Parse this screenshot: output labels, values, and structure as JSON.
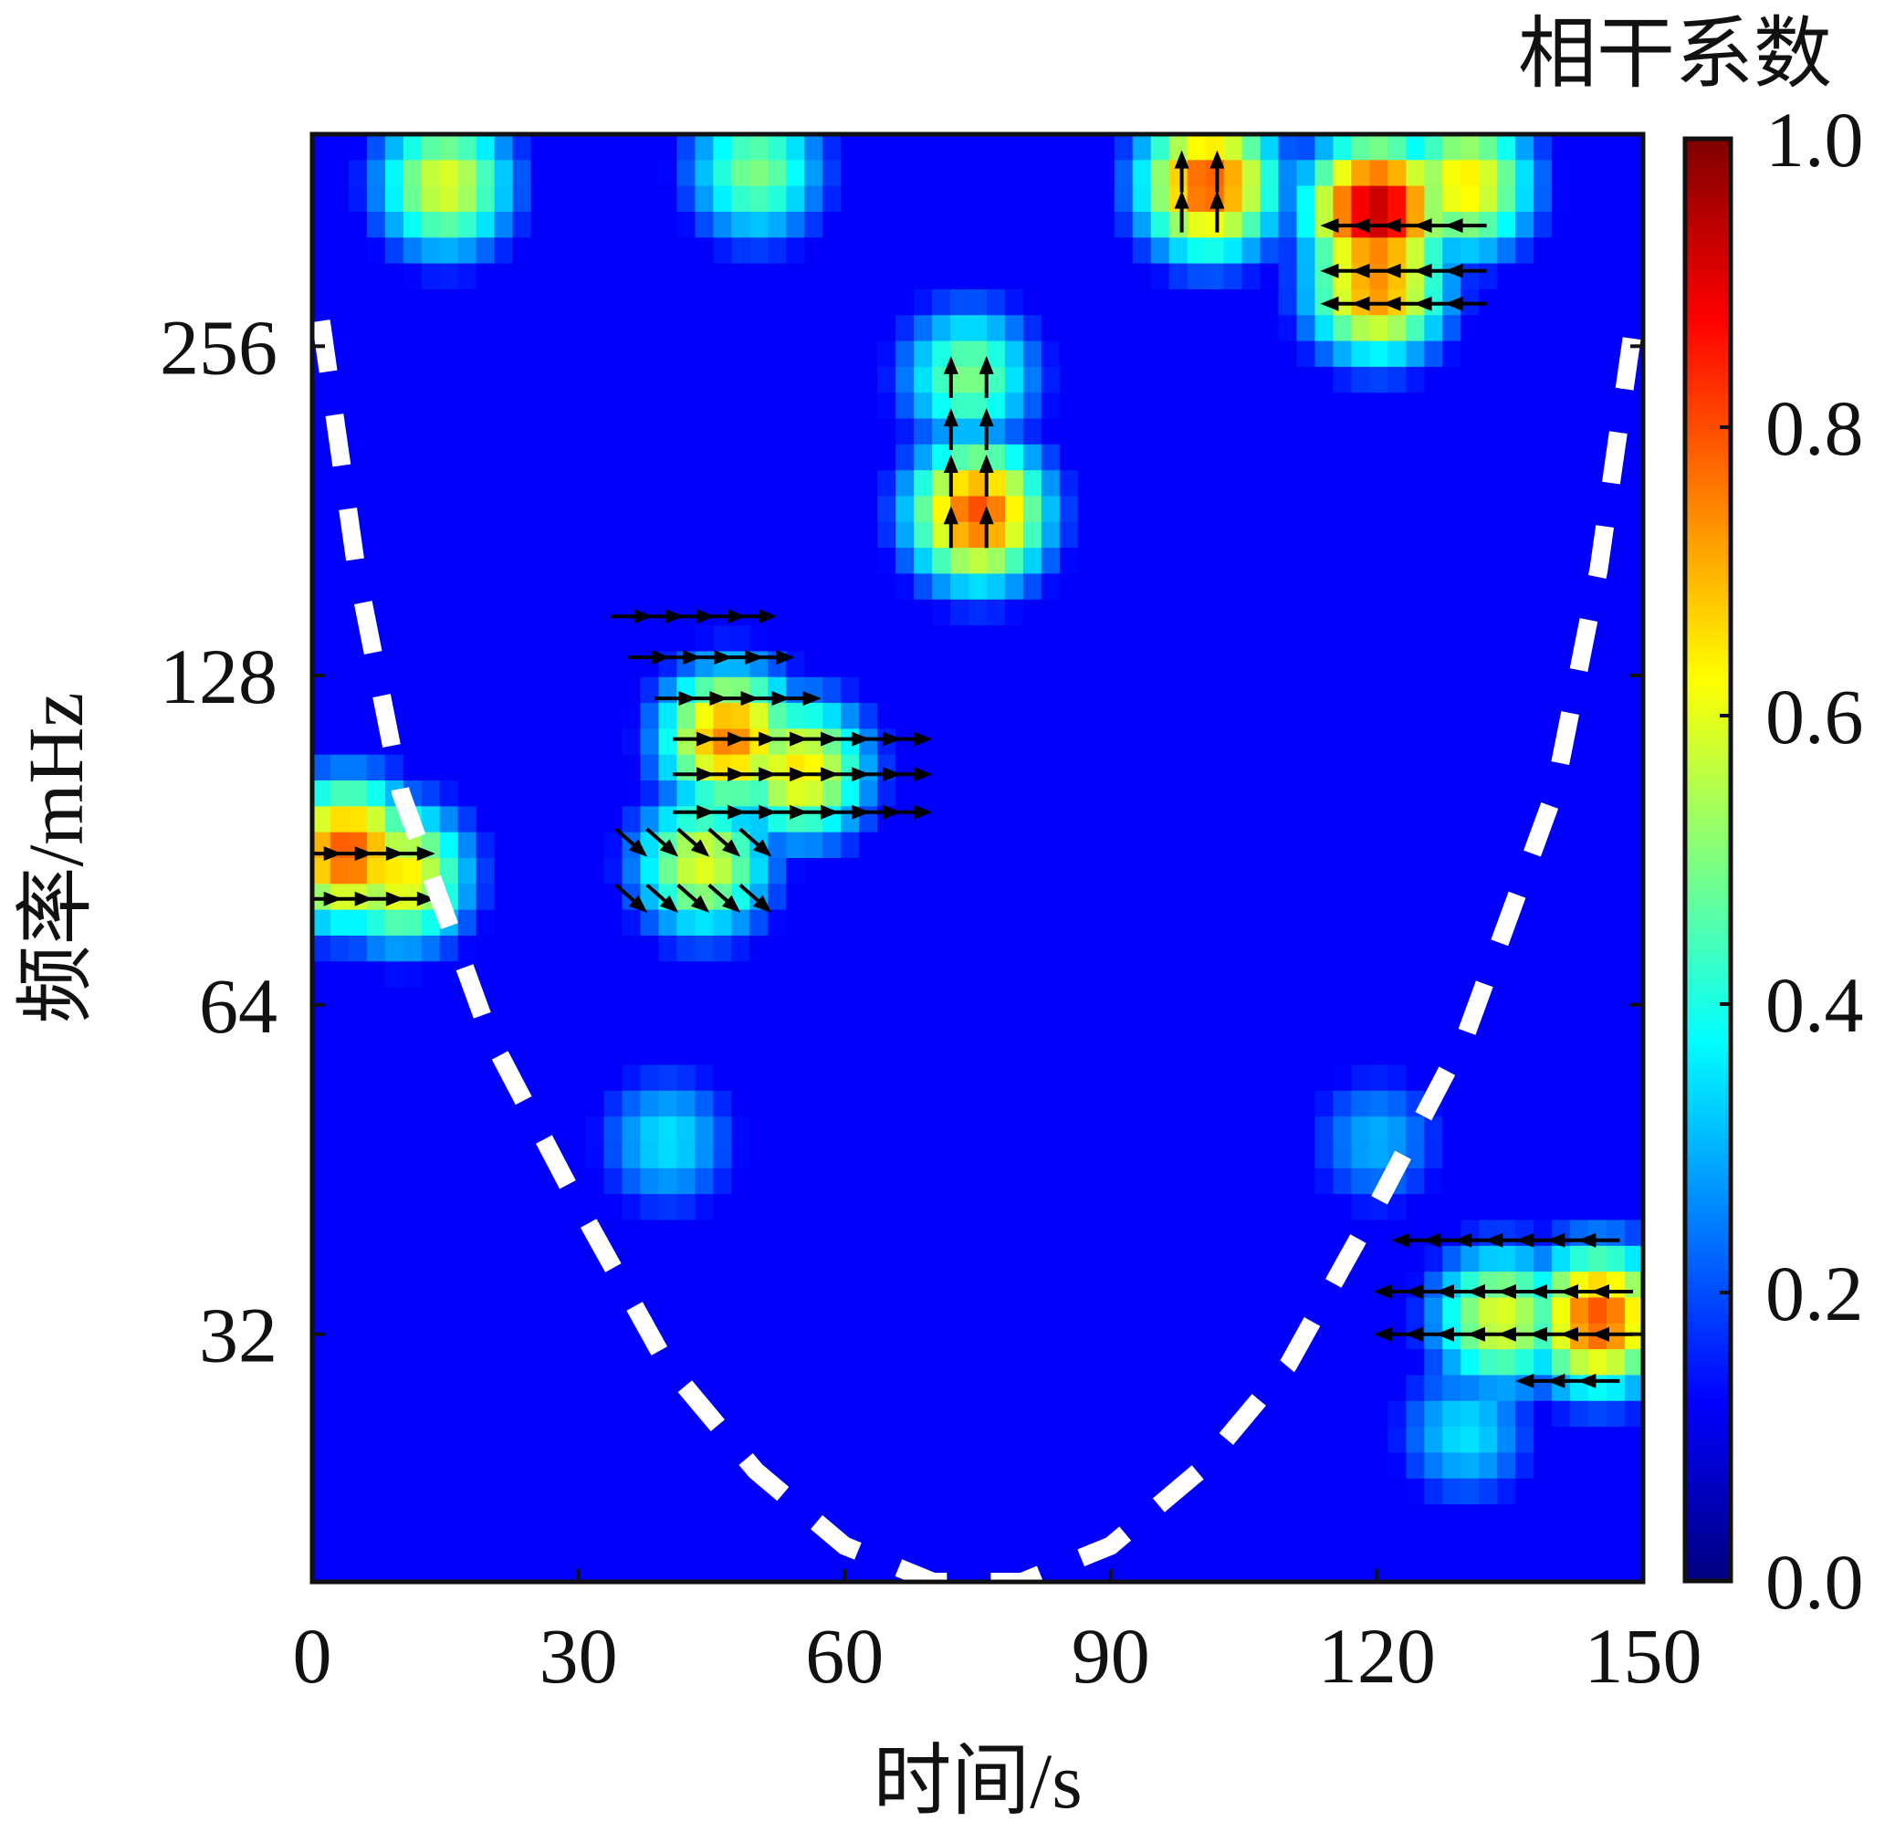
{
  "chart_data": {
    "type": "heatmap",
    "subtype": "wavelet-coherence",
    "xlabel": "时间/s",
    "ylabel": "频率/mHz",
    "xlim": [
      0,
      150
    ],
    "x_ticks": [
      0,
      30,
      60,
      90,
      120,
      150
    ],
    "x_tick_labels": [
      "0",
      "30",
      "60",
      "90",
      "120",
      "150"
    ],
    "y_scale": "log2",
    "ylim": [
      19,
      400
    ],
    "y_ticks": [
      32,
      64,
      128,
      256
    ],
    "y_tick_labels": [
      "32",
      "64",
      "128",
      "256"
    ],
    "colorbar": {
      "label": "相干系数",
      "range": [
        0,
        1
      ],
      "ticks": [
        0,
        0.2,
        0.4,
        0.6,
        0.8,
        1.0
      ],
      "tick_labels": [
        "0.0",
        "0.2",
        "0.4",
        "0.6",
        "0.8",
        "1.0"
      ],
      "colormap": "jet"
    },
    "background_coherence": 0.12,
    "coherence_regions": [
      {
        "t": 4,
        "f": 88,
        "coherence": 0.8
      },
      {
        "t": 10,
        "f": 84,
        "coherence": 0.65
      },
      {
        "t": 47,
        "f": 112,
        "coherence": 0.75
      },
      {
        "t": 55,
        "f": 105,
        "coherence": 0.65
      },
      {
        "t": 44,
        "f": 86,
        "coherence": 0.6
      },
      {
        "t": 75,
        "f": 180,
        "coherence": 0.8
      },
      {
        "t": 74,
        "f": 240,
        "coherence": 0.5
      },
      {
        "t": 120,
        "f": 340,
        "coherence": 0.95
      },
      {
        "t": 120,
        "f": 290,
        "coherence": 0.75
      },
      {
        "t": 130,
        "f": 360,
        "coherence": 0.65
      },
      {
        "t": 101,
        "f": 360,
        "coherence": 0.8
      },
      {
        "t": 15,
        "f": 360,
        "coherence": 0.6
      },
      {
        "t": 50,
        "f": 370,
        "coherence": 0.5
      },
      {
        "t": 145,
        "f": 33,
        "coherence": 0.8
      },
      {
        "t": 134,
        "f": 33,
        "coherence": 0.6
      },
      {
        "t": 40,
        "f": 48,
        "coherence": 0.35
      },
      {
        "t": 130,
        "f": 26,
        "coherence": 0.35
      },
      {
        "t": 120,
        "f": 48,
        "coherence": 0.3
      }
    ],
    "phase_arrow_groups": [
      {
        "t_range": [
          1,
          13
        ],
        "freqs": [
          88,
          80
        ],
        "direction": "right"
      },
      {
        "t_range": [
          38,
          53
        ],
        "freqs": [
          133
        ],
        "direction": "right"
      },
      {
        "t_range": [
          41,
          58
        ],
        "freqs": [
          122
        ],
        "direction": "right"
      },
      {
        "t_range": [
          43,
          70
        ],
        "freqs": [
          112,
          104,
          96
        ],
        "direction": "right"
      },
      {
        "t_range": [
          36,
          53
        ],
        "freqs": [
          145
        ],
        "direction": "right"
      },
      {
        "t_range": [
          36,
          53
        ],
        "freqs": [
          90,
          80
        ],
        "direction": "down-right"
      },
      {
        "t_range": [
          72,
          79
        ],
        "freqs": [
          175,
          195,
          215,
          240
        ],
        "direction": "up"
      },
      {
        "t_range": [
          116,
          132
        ],
        "freqs": [
          330,
          300,
          280
        ],
        "direction": "left"
      },
      {
        "t_range": [
          98,
          103
        ],
        "freqs": [
          340,
          370
        ],
        "direction": "up"
      },
      {
        "t_range": [
          124,
          148
        ],
        "freqs": [
          39
        ],
        "direction": "left"
      },
      {
        "t_range": [
          122,
          148
        ],
        "freqs": [
          35,
          32
        ],
        "direction": "left"
      },
      {
        "t_range": [
          138,
          148
        ],
        "freqs": [
          29
        ],
        "direction": "left"
      }
    ],
    "cone_of_influence": {
      "style": "white-dashed",
      "points": [
        [
          1,
          270
        ],
        [
          5,
          160
        ],
        [
          10,
          100
        ],
        [
          20,
          60
        ],
        [
          30,
          42
        ],
        [
          40,
          30
        ],
        [
          50,
          24
        ],
        [
          60,
          20.5
        ],
        [
          70,
          19
        ],
        [
          80,
          19
        ],
        [
          90,
          20.5
        ],
        [
          100,
          24
        ],
        [
          110,
          30
        ],
        [
          120,
          42
        ],
        [
          130,
          60
        ],
        [
          140,
          100
        ],
        [
          145,
          160
        ],
        [
          149,
          270
        ]
      ]
    }
  }
}
